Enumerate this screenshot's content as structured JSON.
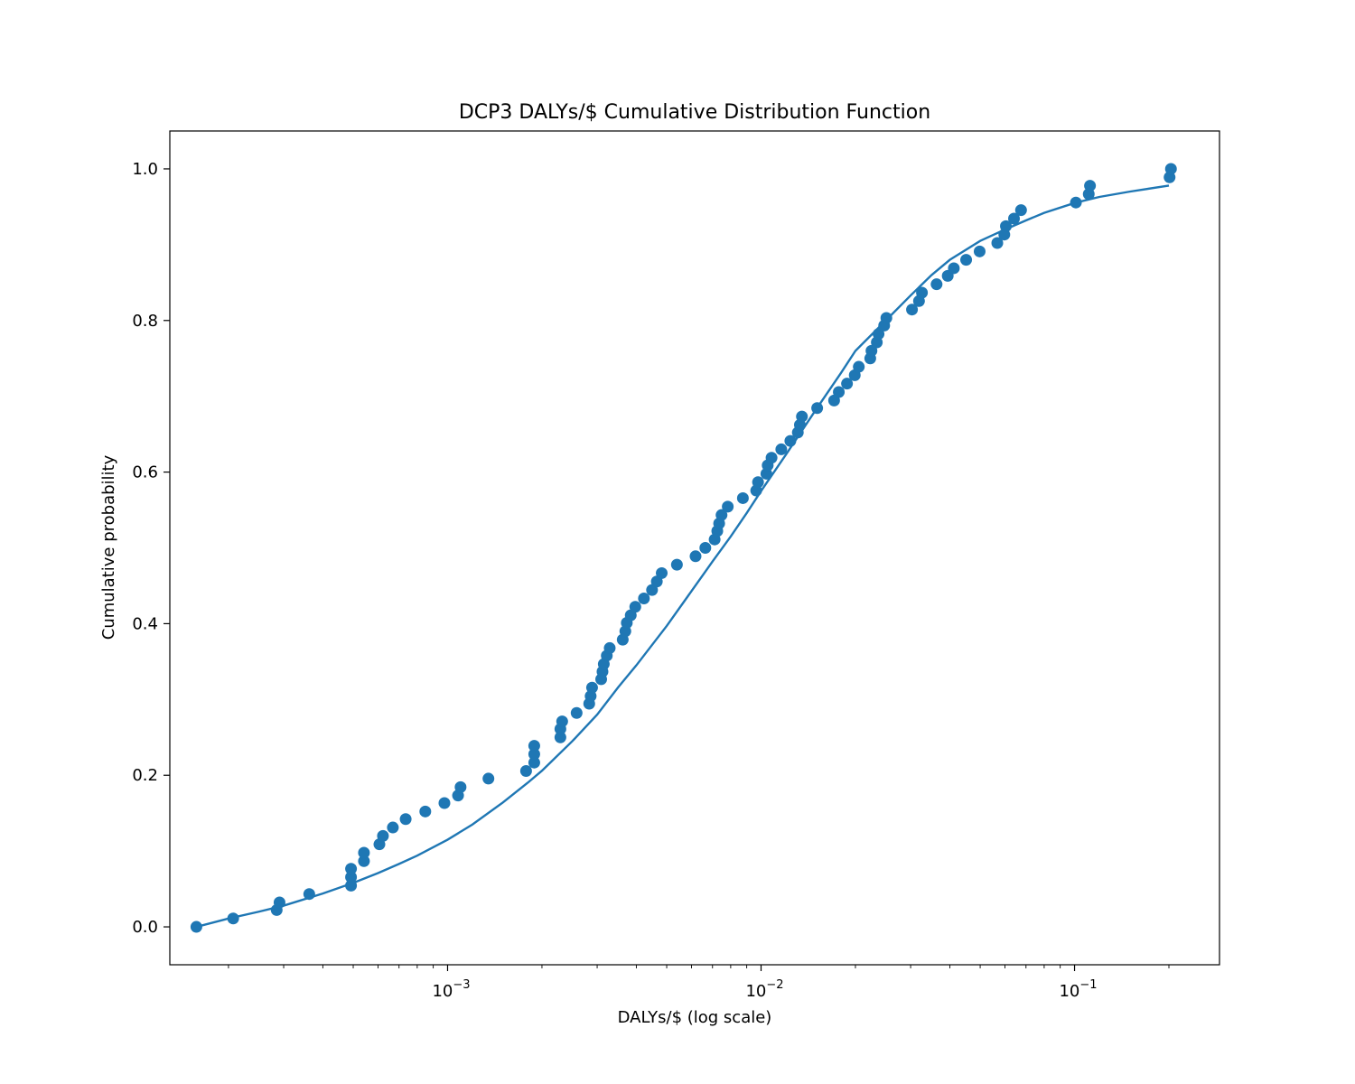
{
  "chart_data": {
    "type": "scatter",
    "title": "DCP3 DALYs/$ Cumulative Distribution Function",
    "xlabel": "DALYs/$ (log scale)",
    "ylabel": "Cumulative probability",
    "xscale": "log",
    "xlim": [
      0.00013,
      0.29
    ],
    "ylim": [
      -0.05,
      1.05
    ],
    "grid": false,
    "color": "#1f77b4",
    "xticks": [
      {
        "value": 0.001,
        "base": "10",
        "exp": "−3"
      },
      {
        "value": 0.01,
        "base": "10",
        "exp": "−2"
      },
      {
        "value": 0.1,
        "base": "10",
        "exp": "−1"
      }
    ],
    "yticks": [
      {
        "value": 0.0,
        "label": "0.0"
      },
      {
        "value": 0.2,
        "label": "0.2"
      },
      {
        "value": 0.4,
        "label": "0.4"
      },
      {
        "value": 0.6,
        "label": "0.6"
      },
      {
        "value": 0.8,
        "label": "0.8"
      },
      {
        "value": 1.0,
        "label": "1.0"
      }
    ],
    "series": [
      {
        "kind": "points",
        "x": [
          0.000158,
          0.000207,
          0.000285,
          0.000291,
          0.000362,
          0.000492,
          0.000492,
          0.000492,
          0.000541,
          0.000541,
          0.000606,
          0.000622,
          0.000669,
          0.000735,
          0.000849,
          0.000977,
          0.00108,
          0.0011,
          0.00135,
          0.00178,
          0.00189,
          0.00189,
          0.00189,
          0.00229,
          0.00229,
          0.00232,
          0.00258,
          0.00283,
          0.00286,
          0.00289,
          0.00309,
          0.00312,
          0.00315,
          0.00322,
          0.00329,
          0.00362,
          0.00369,
          0.00373,
          0.00384,
          0.00397,
          0.00423,
          0.00449,
          0.00465,
          0.00482,
          0.00539,
          0.00618,
          0.00664,
          0.00711,
          0.00725,
          0.00735,
          0.00748,
          0.00783,
          0.00875,
          0.00965,
          0.00978,
          0.0104,
          0.0105,
          0.0108,
          0.0116,
          0.0124,
          0.0131,
          0.0133,
          0.0135,
          0.0151,
          0.0171,
          0.0177,
          0.0188,
          0.0199,
          0.0205,
          0.0223,
          0.0225,
          0.0234,
          0.0237,
          0.0247,
          0.0251,
          0.0303,
          0.0319,
          0.0326,
          0.0363,
          0.0394,
          0.0412,
          0.0451,
          0.0498,
          0.0567,
          0.0597,
          0.0604,
          0.0641,
          0.0675,
          0.101,
          0.111,
          0.112,
          0.201,
          0.203
        ],
        "y": [
          0.0,
          0.0111,
          0.0222,
          0.0322,
          0.0433,
          0.0544,
          0.0656,
          0.0767,
          0.0867,
          0.0978,
          0.1089,
          0.12,
          0.1311,
          0.1422,
          0.1522,
          0.1633,
          0.1733,
          0.1844,
          0.1956,
          0.2056,
          0.2167,
          0.2278,
          0.2389,
          0.25,
          0.2611,
          0.2711,
          0.2822,
          0.2944,
          0.3044,
          0.3156,
          0.3267,
          0.3367,
          0.3467,
          0.3578,
          0.3678,
          0.3789,
          0.39,
          0.4011,
          0.4111,
          0.4222,
          0.4333,
          0.4444,
          0.4556,
          0.4667,
          0.4778,
          0.4889,
          0.5,
          0.5111,
          0.5222,
          0.5322,
          0.5433,
          0.5544,
          0.5656,
          0.5756,
          0.5867,
          0.5978,
          0.6089,
          0.6189,
          0.63,
          0.6411,
          0.6522,
          0.6622,
          0.6733,
          0.6844,
          0.6944,
          0.7056,
          0.7167,
          0.7278,
          0.7389,
          0.75,
          0.76,
          0.7711,
          0.7822,
          0.7933,
          0.8033,
          0.8144,
          0.8256,
          0.8367,
          0.8478,
          0.8589,
          0.8689,
          0.88,
          0.8911,
          0.9022,
          0.9133,
          0.9244,
          0.9344,
          0.9456,
          0.9556,
          0.9667,
          0.9778,
          0.9889,
          1.0
        ]
      },
      {
        "kind": "line",
        "x": [
          0.000158,
          0.0002,
          0.00025,
          0.0003,
          0.0004,
          0.0005,
          0.0006,
          0.0007,
          0.0008,
          0.001,
          0.0012,
          0.0015,
          0.0018,
          0.002,
          0.0025,
          0.003,
          0.0035,
          0.004,
          0.005,
          0.006,
          0.007,
          0.008,
          0.009,
          0.01,
          0.012,
          0.015,
          0.018,
          0.02,
          0.025,
          0.03,
          0.035,
          0.04,
          0.05,
          0.06,
          0.07,
          0.08,
          0.1,
          0.12,
          0.15,
          0.2
        ],
        "y": [
          0.0,
          0.011,
          0.02,
          0.028,
          0.044,
          0.058,
          0.071,
          0.083,
          0.094,
          0.115,
          0.135,
          0.164,
          0.19,
          0.206,
          0.245,
          0.28,
          0.316,
          0.345,
          0.397,
          0.443,
          0.482,
          0.515,
          0.546,
          0.575,
          0.623,
          0.683,
          0.731,
          0.76,
          0.8,
          0.833,
          0.86,
          0.88,
          0.905,
          0.92,
          0.932,
          0.942,
          0.955,
          0.963,
          0.97,
          0.978
        ]
      }
    ]
  }
}
